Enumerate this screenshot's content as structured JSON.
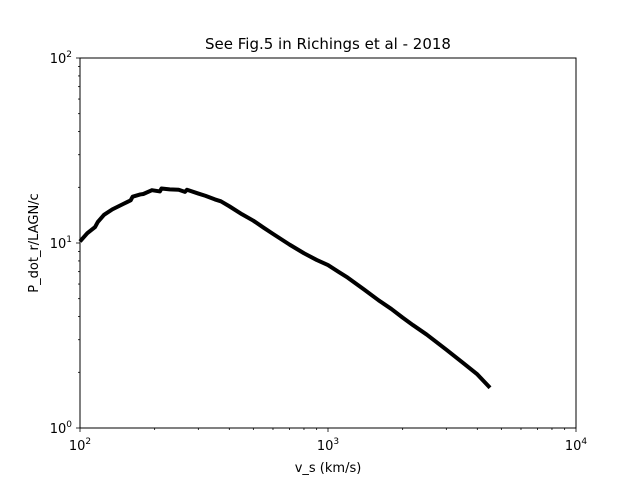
{
  "chart_data": {
    "type": "line",
    "title": "See Fig.5 in Richings et al - 2018",
    "xlabel": "v_s (km/s)",
    "ylabel": "P_dot_r/LAGN/c",
    "xscale": "log",
    "yscale": "log",
    "xlim": [
      100,
      10000
    ],
    "ylim": [
      1,
      100
    ],
    "grid": false,
    "x_ticks": [
      {
        "value": 100,
        "base": "10",
        "exp": "2"
      },
      {
        "value": 1000,
        "base": "10",
        "exp": "3"
      },
      {
        "value": 10000,
        "base": "10",
        "exp": "4"
      }
    ],
    "y_ticks": [
      {
        "value": 1,
        "base": "10",
        "exp": "0"
      },
      {
        "value": 10,
        "base": "10",
        "exp": "1"
      },
      {
        "value": 100,
        "base": "10",
        "exp": "2"
      }
    ],
    "line_color": "#000000",
    "series": [
      {
        "x": [
          100,
          107,
          115,
          118,
          125,
          135,
          150,
          160,
          163,
          175,
          180,
          195,
          210,
          213,
          230,
          250,
          265,
          270,
          300,
          320,
          350,
          370,
          400,
          450,
          500,
          550,
          600,
          700,
          800,
          900,
          1000,
          1100,
          1200,
          1400,
          1600,
          1800,
          2000,
          2200,
          2500,
          3000,
          3500,
          4000,
          4500
        ],
        "y": [
          10.2,
          11.3,
          12.2,
          13.0,
          14.2,
          15.2,
          16.3,
          17.0,
          17.8,
          18.3,
          18.4,
          19.3,
          19.0,
          19.7,
          19.5,
          19.4,
          18.9,
          19.4,
          18.5,
          18.0,
          17.2,
          16.8,
          15.8,
          14.3,
          13.2,
          12.1,
          11.2,
          9.8,
          8.8,
          8.1,
          7.6,
          7.0,
          6.5,
          5.6,
          4.9,
          4.4,
          3.95,
          3.6,
          3.2,
          2.65,
          2.25,
          1.95,
          1.65
        ]
      }
    ]
  }
}
